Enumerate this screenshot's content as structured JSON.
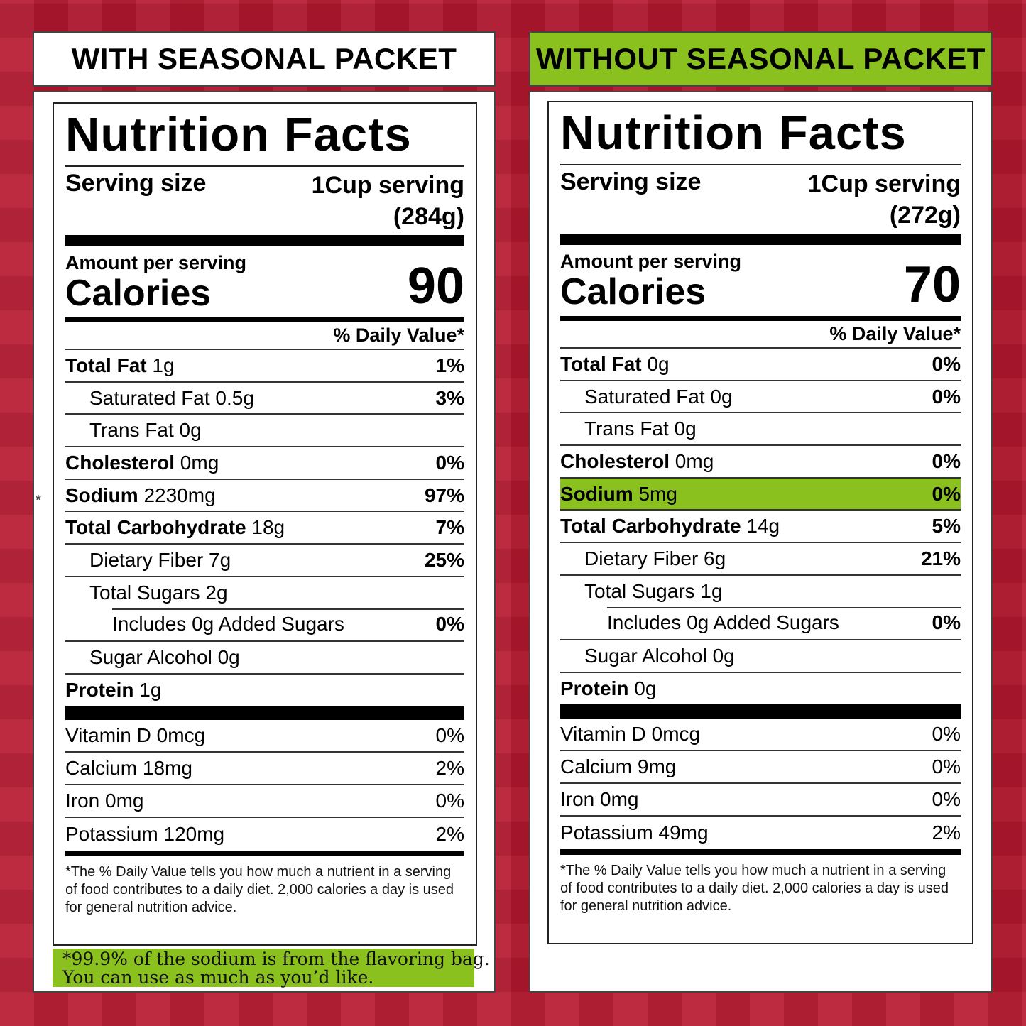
{
  "colors": {
    "background": "#b5172e",
    "accent_green": "#8bc11e"
  },
  "left": {
    "header": "WITH SEASONAL PACKET",
    "title": "Nutrition Facts",
    "serving_label": "Serving size",
    "serving_size": "1Cup serving",
    "serving_grams": "(284g)",
    "amount_per_serving": "Amount per serving",
    "calories_label": "Calories",
    "calories_value": "90",
    "dv_header": "% Daily Value*",
    "rows": [
      {
        "name": "Total Fat",
        "amount": " 1g",
        "dv": "1%"
      },
      {
        "name": "Saturated Fat",
        "amount": " 0.5g",
        "dv": "3%"
      },
      {
        "name": "Trans Fat",
        "amount": " 0g",
        "dv": ""
      },
      {
        "name": "Cholesterol",
        "amount": " 0mg",
        "dv": "0%"
      },
      {
        "name": "Sodium",
        "amount": " 2230mg",
        "dv": "97%"
      },
      {
        "name": "Total Carbohydrate",
        "amount": " 18g",
        "dv": "7%"
      },
      {
        "name": "Dietary Fiber",
        "amount": " 7g",
        "dv": "25%"
      },
      {
        "name": "Total Sugars",
        "amount": " 2g",
        "dv": ""
      },
      {
        "name": "Includes 0g Added Sugars",
        "amount": "",
        "dv": "0%"
      },
      {
        "name": "Sugar Alcohol",
        "amount": " 0g",
        "dv": ""
      },
      {
        "name": "Protein",
        "amount": " 1g",
        "dv": ""
      }
    ],
    "vitamins": [
      {
        "name": "Vitamin D 0mcg",
        "dv": "0%"
      },
      {
        "name": "Calcium 18mg",
        "dv": "2%"
      },
      {
        "name": "Iron 0mg",
        "dv": "0%"
      },
      {
        "name": "Potassium 120mg",
        "dv": "2%"
      }
    ],
    "footnote": "*The % Daily Value tells you how much a nutrient in a serving of food contributes to a daily diet. 2,000 calories a day is used for general nutrition advice.",
    "side_mark": "*",
    "note_line1": "*99.9% of the sodium is from the flavoring bag.",
    "note_line2": "You can use as much as you’d like."
  },
  "right": {
    "header": "WITHOUT SEASONAL PACKET",
    "title": "Nutrition Facts",
    "serving_label": "Serving size",
    "serving_size": "1Cup serving",
    "serving_grams": "(272g)",
    "amount_per_serving": "Amount per serving",
    "calories_label": "Calories",
    "calories_value": "70",
    "dv_header": "% Daily Value*",
    "rows": [
      {
        "name": "Total Fat",
        "amount": " 0g",
        "dv": "0%"
      },
      {
        "name": "Saturated Fat",
        "amount": " 0g",
        "dv": "0%"
      },
      {
        "name": "Trans Fat",
        "amount": " 0g",
        "dv": ""
      },
      {
        "name": "Cholesterol",
        "amount": " 0mg",
        "dv": "0%"
      },
      {
        "name": "Sodium",
        "amount": " 5mg",
        "dv": "0%"
      },
      {
        "name": "Total Carbohydrate",
        "amount": " 14g",
        "dv": "5%"
      },
      {
        "name": "Dietary Fiber",
        "amount": " 6g",
        "dv": "21%"
      },
      {
        "name": "Total Sugars",
        "amount": " 1g",
        "dv": ""
      },
      {
        "name": "Includes 0g Added Sugars",
        "amount": "",
        "dv": "0%"
      },
      {
        "name": "Sugar Alcohol",
        "amount": " 0g",
        "dv": ""
      },
      {
        "name": "Protein",
        "amount": " 0g",
        "dv": ""
      }
    ],
    "vitamins": [
      {
        "name": "Vitamin D 0mcg",
        "dv": "0%"
      },
      {
        "name": "Calcium 9mg",
        "dv": "0%"
      },
      {
        "name": "Iron 0mg",
        "dv": "0%"
      },
      {
        "name": "Potassium 49mg",
        "dv": "2%"
      }
    ],
    "footnote": "*The % Daily Value tells you how much a nutrient in a serving of food contributes to a daily diet. 2,000 calories a day is used for general nutrition advice."
  }
}
